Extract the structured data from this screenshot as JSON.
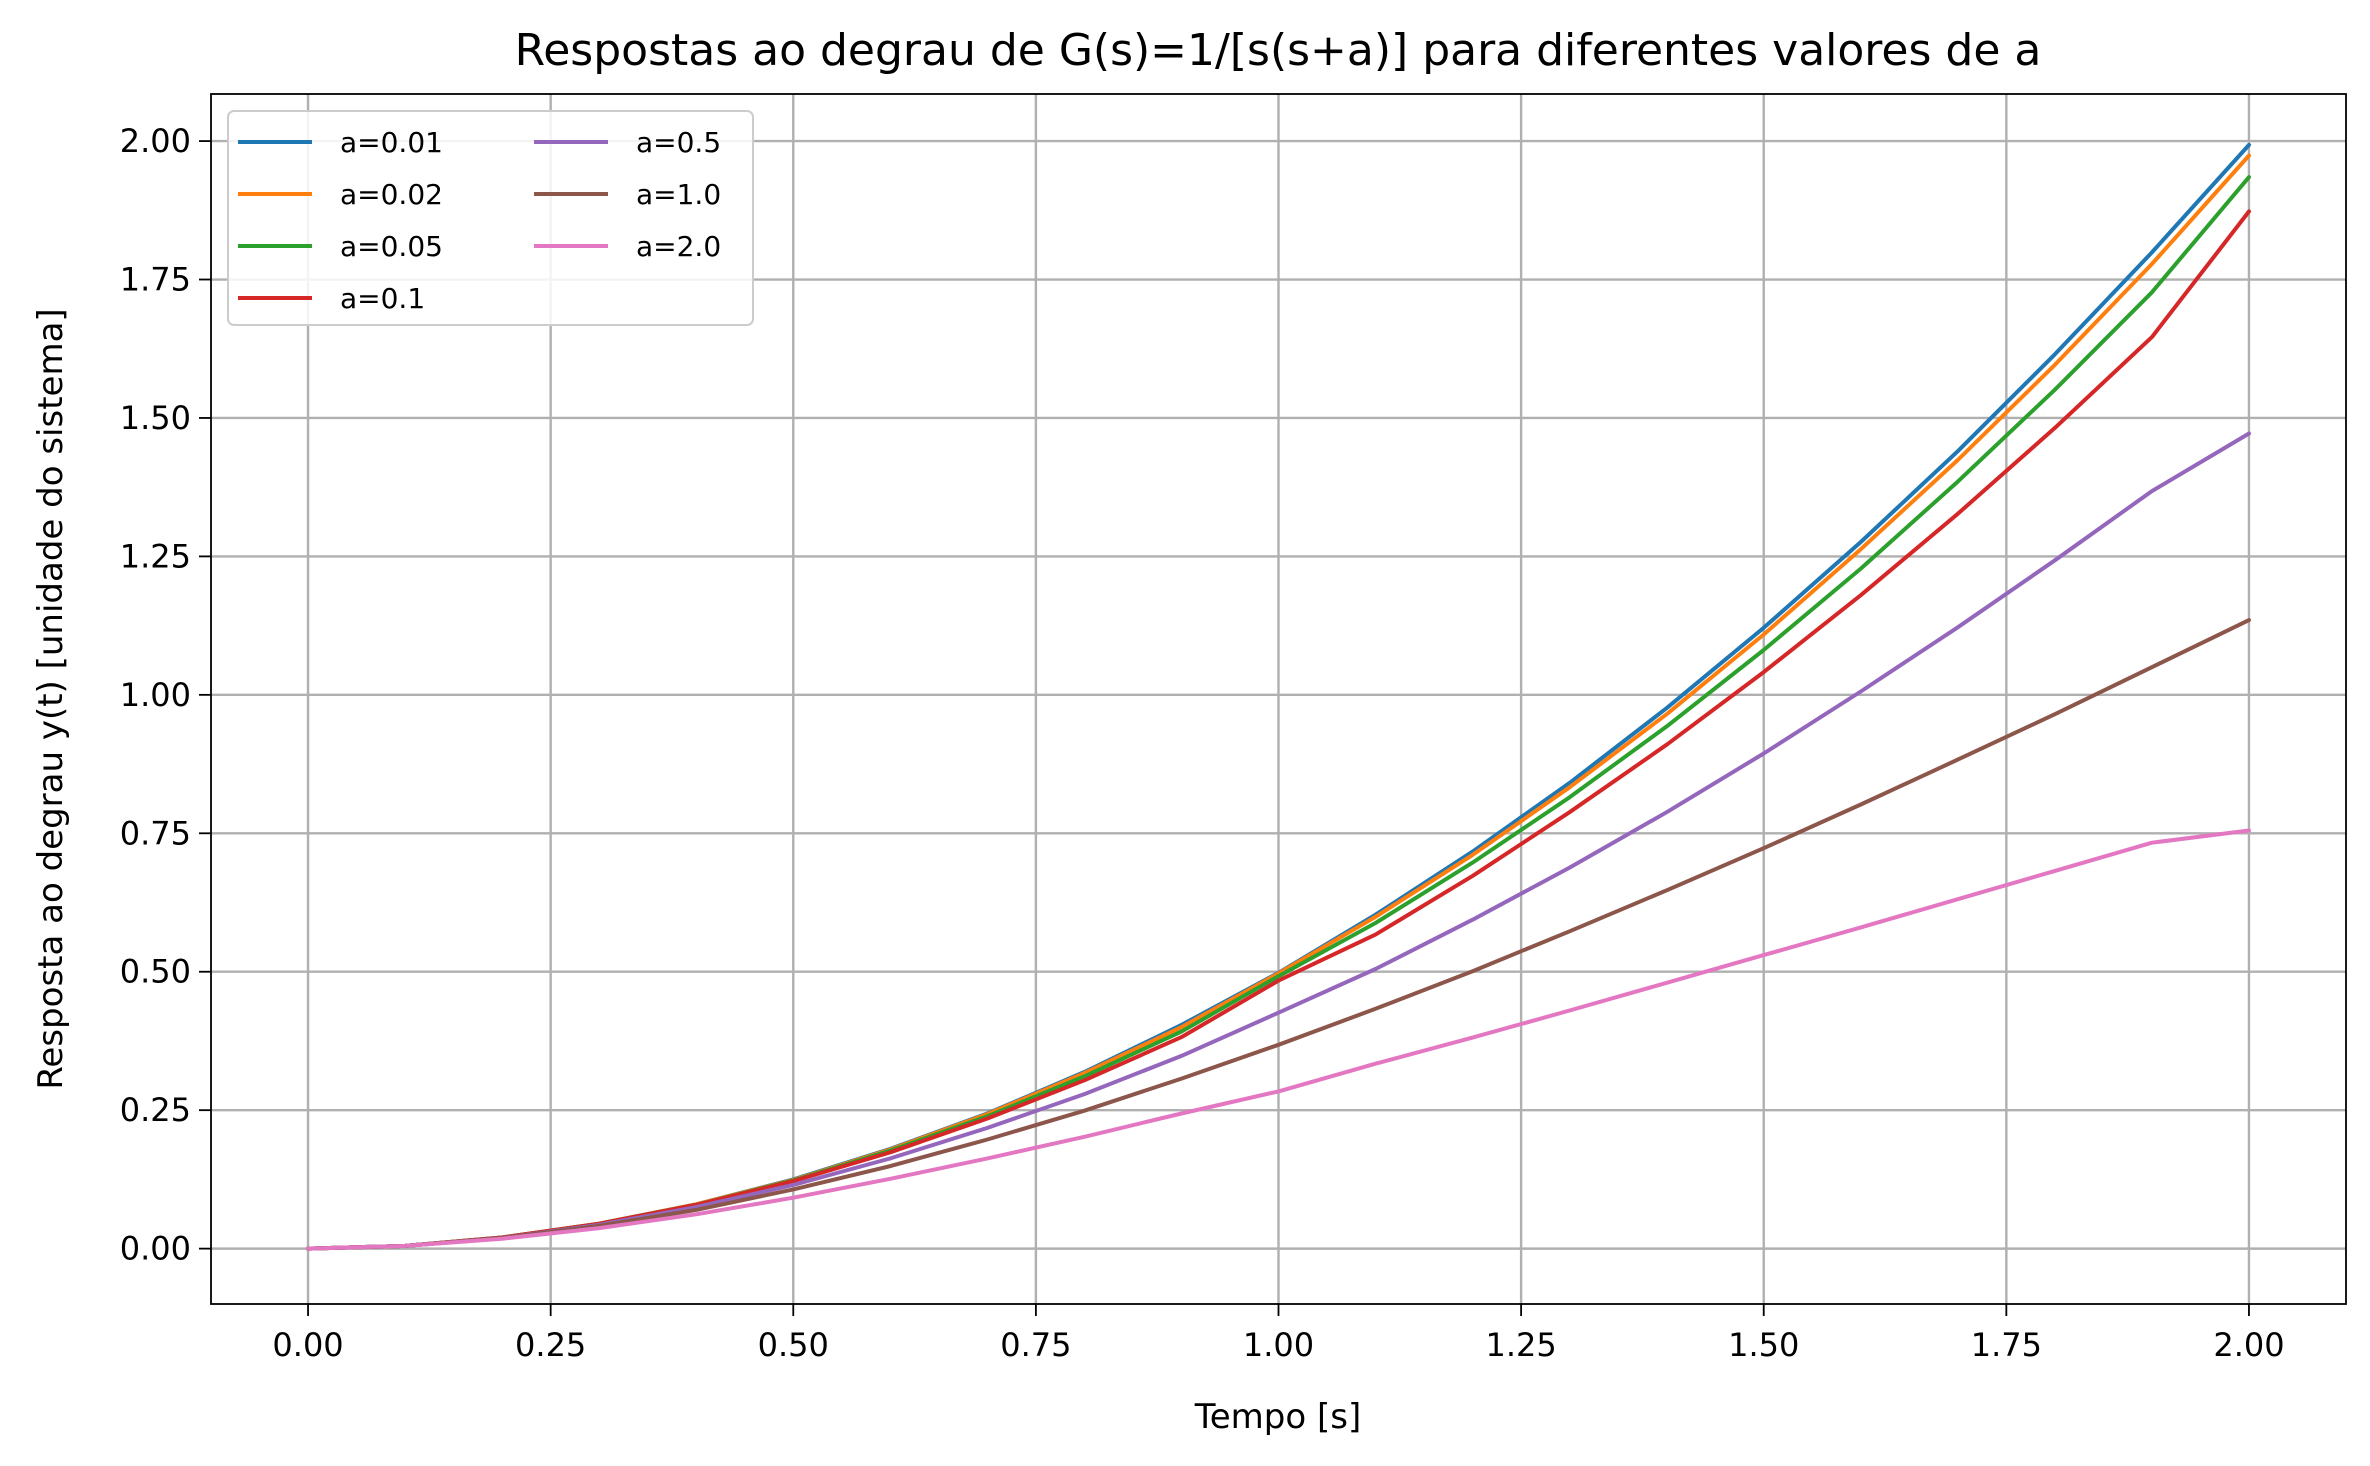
{
  "chart_data": {
    "type": "line",
    "title": "Respostas ao degrau de G(s)=1/[s(s+a)] para diferentes valores de a",
    "xlabel": "Tempo [s]",
    "ylabel": "Resposta ao degrau y(t) [unidade do sistema]",
    "xlim": [
      -0.1,
      2.1
    ],
    "ylim": [
      -0.1,
      2.085
    ],
    "xticks": [
      0.0,
      0.25,
      0.5,
      0.75,
      1.0,
      1.25,
      1.5,
      1.75,
      2.0
    ],
    "xtick_labels": [
      "0.00",
      "0.25",
      "0.50",
      "0.75",
      "1.00",
      "1.25",
      "1.50",
      "1.75",
      "2.00"
    ],
    "yticks": [
      0.0,
      0.25,
      0.5,
      0.75,
      1.0,
      1.25,
      1.5,
      1.75,
      2.0
    ],
    "ytick_labels": [
      "0.00",
      "0.25",
      "0.50",
      "0.75",
      "1.00",
      "1.25",
      "1.50",
      "1.75",
      "2.00"
    ],
    "grid": true,
    "legend_position": "upper-left",
    "x": [
      0.0,
      0.1,
      0.2,
      0.3,
      0.4,
      0.5,
      0.6,
      0.7,
      0.8,
      0.9,
      1.0,
      1.1,
      1.2,
      1.3,
      1.4,
      1.5,
      1.6,
      1.7,
      1.8,
      1.9,
      2.0
    ],
    "series": [
      {
        "name": "a=0.01",
        "color": "#1f77b4",
        "values": [
          0.0,
          0.005,
          0.02,
          0.045,
          0.08,
          0.125,
          0.18,
          0.244,
          0.319,
          0.404,
          0.498,
          0.603,
          0.717,
          0.841,
          0.976,
          1.121,
          1.276,
          1.44,
          1.615,
          1.799,
          1.993
        ]
      },
      {
        "name": "a=0.02",
        "color": "#ff7f0e",
        "values": [
          0.0,
          0.005,
          0.02,
          0.045,
          0.08,
          0.124,
          0.179,
          0.243,
          0.317,
          0.4,
          0.497,
          0.599,
          0.711,
          0.833,
          0.965,
          1.109,
          1.263,
          1.424,
          1.596,
          1.778,
          1.974
        ]
      },
      {
        "name": "a=0.05",
        "color": "#2ca02c",
        "values": [
          0.0,
          0.005,
          0.02,
          0.045,
          0.079,
          0.123,
          0.177,
          0.239,
          0.311,
          0.392,
          0.492,
          0.588,
          0.697,
          0.815,
          0.943,
          1.081,
          1.228,
          1.385,
          1.551,
          1.727,
          1.935
        ]
      },
      {
        "name": "a=0.1",
        "color": "#d62728",
        "values": [
          0.0,
          0.005,
          0.02,
          0.045,
          0.079,
          0.122,
          0.174,
          0.235,
          0.304,
          0.382,
          0.484,
          0.567,
          0.673,
          0.788,
          0.91,
          1.041,
          1.18,
          1.327,
          1.482,
          1.646,
          1.873
        ]
      },
      {
        "name": "a=0.5",
        "color": "#9467bd",
        "values": [
          0.0,
          0.005,
          0.019,
          0.043,
          0.075,
          0.115,
          0.163,
          0.218,
          0.279,
          0.348,
          0.426,
          0.505,
          0.594,
          0.688,
          0.788,
          0.894,
          1.006,
          1.122,
          1.243,
          1.368,
          1.472
        ]
      },
      {
        "name": "a=1.0",
        "color": "#8c564b",
        "values": [
          0.0,
          0.005,
          0.019,
          0.041,
          0.07,
          0.107,
          0.149,
          0.197,
          0.249,
          0.307,
          0.368,
          0.433,
          0.501,
          0.573,
          0.647,
          0.723,
          0.802,
          0.883,
          0.965,
          1.05,
          1.135
        ]
      },
      {
        "name": "a=2.0",
        "color": "#e377c2",
        "values": [
          0.0,
          0.005,
          0.018,
          0.037,
          0.062,
          0.092,
          0.126,
          0.163,
          0.202,
          0.244,
          0.284,
          0.334,
          0.381,
          0.43,
          0.48,
          0.53,
          0.58,
          0.631,
          0.682,
          0.733,
          0.755
        ]
      }
    ]
  }
}
